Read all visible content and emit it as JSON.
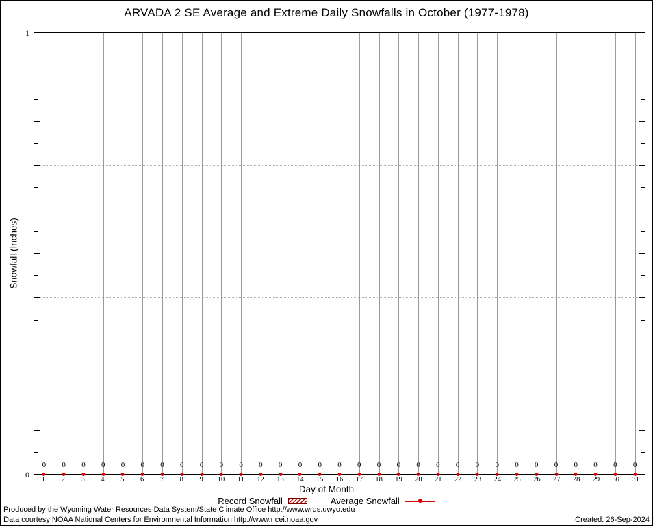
{
  "page": {
    "footer": {
      "line1": "Produced by the Wyoming Water Resources Data System/State Climate Office http://www.wrds.uwyo.edu",
      "line2": "Data courtesy NOAA National Centers for Environmental Information http://www.ncei.noaa.gov",
      "created": "Created: 26-Sep-2024"
    }
  },
  "colors": {
    "accent": "#d40000",
    "grid": "#9b9b9b",
    "border": "#000000"
  },
  "chart_data": {
    "type": "line",
    "title": "ARVADA 2 SE Average and Extreme Daily Snowfalls in October (1977-1978)",
    "xlabel": "Day of Month",
    "ylabel": "Snowfall (Inches)",
    "xlim": [
      1,
      31
    ],
    "ylim": [
      0,
      1
    ],
    "ytick_labels": [
      "0",
      "1"
    ],
    "categories": [
      1,
      2,
      3,
      4,
      5,
      6,
      7,
      8,
      9,
      10,
      11,
      12,
      13,
      14,
      15,
      16,
      17,
      18,
      19,
      20,
      21,
      22,
      23,
      24,
      25,
      26,
      27,
      28,
      29,
      30,
      31
    ],
    "series": [
      {
        "name": "Record Snowfall",
        "legend_marker": "hatched-box",
        "color": "#d40000",
        "values": [
          0,
          0,
          0,
          0,
          0,
          0,
          0,
          0,
          0,
          0,
          0,
          0,
          0,
          0,
          0,
          0,
          0,
          0,
          0,
          0,
          0,
          0,
          0,
          0,
          0,
          0,
          0,
          0,
          0,
          0,
          0
        ]
      },
      {
        "name": "Average Snowfall",
        "legend_marker": "line-dot",
        "color": "#d40000",
        "values": [
          0,
          0,
          0,
          0,
          0,
          0,
          0,
          0,
          0,
          0,
          0,
          0,
          0,
          0,
          0,
          0,
          0,
          0,
          0,
          0,
          0,
          0,
          0,
          0,
          0,
          0,
          0,
          0,
          0,
          0,
          0
        ]
      }
    ],
    "point_labels": [
      "0",
      "0",
      "0",
      "0",
      "0",
      "0",
      "0",
      "0",
      "0",
      "0",
      "0",
      "0",
      "0",
      "0",
      "0",
      "0",
      "0",
      "0",
      "0",
      "0",
      "0",
      "0",
      "0",
      "0",
      "0",
      "0",
      "0",
      "0",
      "0",
      "0",
      "0"
    ],
    "grid": {
      "vertical": "solid-gray-per-day",
      "dotted_hlines": [
        0.7,
        0.4
      ]
    },
    "legend_position": "bottom-center"
  }
}
